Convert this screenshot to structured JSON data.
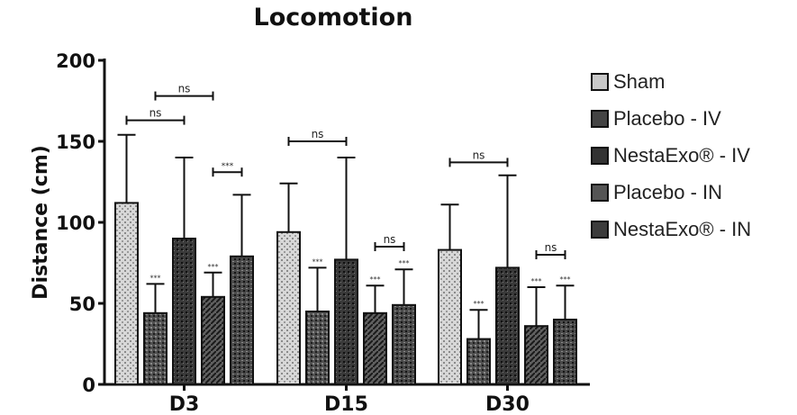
{
  "chart_data": {
    "type": "bar",
    "title": "Locomotion",
    "xlabel": "",
    "ylabel": "Distance (cm)",
    "ylim": [
      0,
      200
    ],
    "yticks": [
      "0",
      "50",
      "100",
      "150",
      "200"
    ],
    "categories": [
      "D3",
      "D15",
      "D30"
    ],
    "legend_position": "right",
    "series": [
      {
        "name": "Sham",
        "values": [
          112,
          94,
          83
        ],
        "errors": [
          42,
          30,
          28
        ],
        "significance": [
          "",
          "",
          ""
        ],
        "color": "#c8c8c8"
      },
      {
        "name": "Placebo - IV",
        "values": [
          44,
          45,
          28
        ],
        "errors": [
          18,
          27,
          18
        ],
        "significance": [
          "***",
          "***",
          "***"
        ],
        "color": "#444444"
      },
      {
        "name": "NestaExo® - IV",
        "values": [
          90,
          77,
          72
        ],
        "errors": [
          50,
          63,
          57
        ],
        "significance": [
          "",
          "",
          ""
        ],
        "color": "#333333"
      },
      {
        "name": "Placebo - IN",
        "values": [
          54,
          44,
          36
        ],
        "errors": [
          15,
          17,
          24
        ],
        "significance": [
          "***",
          "***",
          "***"
        ],
        "color": "#555555"
      },
      {
        "name": "NestaExo® - IN",
        "values": [
          79,
          49,
          40
        ],
        "errors": [
          38,
          22,
          21
        ],
        "significance": [
          "",
          "***",
          "***"
        ],
        "color": "#3c3c3c"
      }
    ],
    "comparisons": [
      {
        "group": 0,
        "from": 0,
        "to": 2,
        "y": 163,
        "label": "ns"
      },
      {
        "group": 0,
        "from": 1,
        "to": 3,
        "y": 178,
        "label": "ns"
      },
      {
        "group": 0,
        "from": 3,
        "to": 4,
        "y": 131,
        "label": "***"
      },
      {
        "group": 1,
        "from": 0,
        "to": 2,
        "y": 150,
        "label": "ns"
      },
      {
        "group": 1,
        "from": 3,
        "to": 4,
        "y": 85,
        "label": "ns"
      },
      {
        "group": 2,
        "from": 0,
        "to": 2,
        "y": 137,
        "label": "ns"
      },
      {
        "group": 2,
        "from": 3,
        "to": 4,
        "y": 80,
        "label": "ns"
      }
    ]
  }
}
